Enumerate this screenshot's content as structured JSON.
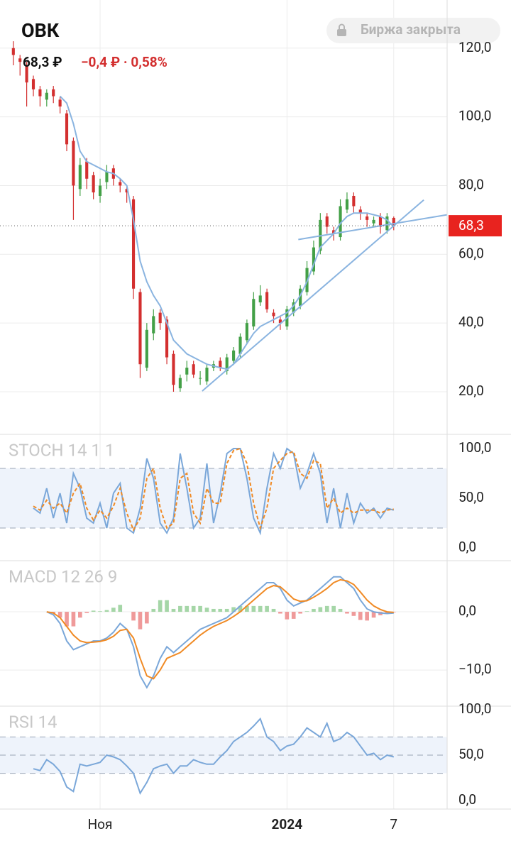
{
  "header": {
    "ticker": "ОВК",
    "price": "68,3 ₽",
    "change": "−0,4 ₽ · 0,58%",
    "status": "Биржа закрыта"
  },
  "chart_data": [
    {
      "type": "candlestick",
      "xlim": [
        -2,
        65
      ],
      "xticks": [
        {
          "value": 13,
          "label": "Ноя"
        },
        {
          "value": 41,
          "label": "2024"
        },
        {
          "value": 57,
          "label": "7"
        }
      ],
      "ylim": [
        7.6,
        134
      ],
      "yticks": [
        {
          "value": 20,
          "label": "20,0"
        },
        {
          "value": 40,
          "label": "40,0"
        },
        {
          "value": 60,
          "label": "60,0"
        },
        {
          "value": 80,
          "label": "80,0"
        },
        {
          "value": 100,
          "label": "100,0"
        },
        {
          "value": 120,
          "label": "120,0"
        }
      ],
      "grid": true,
      "up_color": "#43a047",
      "down_color": "#d32f2f",
      "open": [
        120,
        117,
        115,
        111,
        108,
        105,
        108,
        105,
        101,
        93,
        79,
        87,
        83,
        77,
        81,
        85,
        81,
        79,
        76,
        49,
        27,
        37,
        43,
        41,
        31,
        21,
        25,
        28,
        24,
        23,
        27,
        29,
        26,
        29,
        31,
        35,
        39,
        46,
        49,
        43,
        41,
        39,
        43,
        45,
        49,
        55,
        61,
        71,
        67,
        65,
        73,
        77,
        73,
        71,
        69,
        71,
        67,
        70.6
      ],
      "high": [
        122,
        118,
        116,
        112,
        109,
        108,
        109,
        106,
        102,
        94,
        88,
        88,
        84,
        82,
        86,
        86,
        82,
        80,
        77,
        50,
        40,
        44,
        44,
        42,
        32,
        25,
        29,
        29,
        26,
        28,
        29,
        30,
        31,
        33,
        37,
        41,
        49,
        51,
        50,
        44,
        42,
        45,
        47,
        51,
        58,
        64,
        72,
        72,
        68,
        76,
        78,
        78,
        74,
        72,
        71,
        72,
        72,
        71
      ],
      "low": [
        115,
        112,
        103,
        106,
        103,
        103,
        104,
        101,
        90,
        70,
        77,
        79,
        76,
        75,
        79,
        80,
        78,
        75,
        47,
        24,
        26,
        35,
        38,
        28,
        20,
        20,
        23,
        24,
        22,
        22,
        26,
        26,
        25,
        28,
        30,
        34,
        38,
        45,
        43,
        40,
        38,
        38,
        42,
        44,
        48,
        54,
        60,
        66,
        64,
        64,
        72,
        72,
        70,
        68,
        68,
        66,
        66,
        67
      ],
      "close": [
        118,
        116,
        110,
        108,
        106,
        107,
        106,
        103,
        92,
        80,
        86,
        82,
        78,
        80,
        84,
        82,
        80,
        78,
        50,
        28,
        38,
        42,
        40,
        30,
        22,
        24,
        27,
        25,
        24,
        27,
        28,
        27,
        30,
        32,
        36,
        40,
        47,
        48,
        44,
        42,
        40,
        44,
        46,
        50,
        56,
        62,
        70,
        68,
        66,
        74,
        76,
        74,
        72,
        70,
        70,
        68,
        71,
        68.3
      ],
      "series": [
        {
          "color": "#8ab4e0",
          "values": [
            null,
            null,
            null,
            null,
            null,
            null,
            null,
            106,
            104,
            98,
            90,
            87,
            86,
            85,
            84,
            83.5,
            82,
            80,
            70,
            58,
            52,
            48,
            45,
            40,
            35,
            33,
            31,
            30,
            29,
            28,
            27.5,
            27,
            26.6,
            28,
            31,
            34,
            37,
            39,
            40,
            41,
            42,
            43,
            45,
            48,
            52,
            57,
            62,
            64,
            66,
            69,
            71,
            72,
            72,
            72,
            71.5,
            71,
            70,
            68
          ]
        }
      ],
      "trendlines": [
        {
          "color": "#8ab4e0",
          "x": [
            28.3,
            61.5
          ],
          "y": [
            20.2,
            75.8
          ]
        },
        {
          "color": "#8ab4e0",
          "x": [
            42.7,
            65
          ],
          "y": [
            64.3,
            71.5
          ]
        }
      ],
      "last_price": {
        "value": 68.3,
        "label": "68,3",
        "color": "#e8231f"
      }
    },
    {
      "type": "line",
      "title": "STOCH 14 1 1",
      "ylim": [
        -12.9,
        114.3
      ],
      "yticks": [
        {
          "value": 0,
          "label": "0,0"
        },
        {
          "value": 50,
          "label": "50,0"
        },
        {
          "value": 100,
          "label": "100,0"
        }
      ],
      "bands": [
        20,
        80
      ],
      "series": [
        {
          "color": "#7aa7d9",
          "values": [
            null,
            null,
            null,
            40,
            35,
            60,
            30,
            55,
            25,
            75,
            60,
            30,
            25,
            45,
            20,
            55,
            65,
            20,
            15,
            40,
            90,
            70,
            25,
            15,
            30,
            95,
            60,
            20,
            30,
            85,
            25,
            55,
            95,
            100,
            100,
            70,
            30,
            15,
            60,
            95,
            80,
            100,
            95,
            60,
            75,
            95,
            75,
            25,
            60,
            20,
            55,
            25,
            45,
            35,
            40,
            30,
            40,
            38
          ]
        },
        {
          "color": "#f08a24",
          "dashed": true,
          "values": [
            null,
            null,
            null,
            42,
            38,
            48,
            40,
            45,
            35,
            55,
            65,
            40,
            28,
            38,
            30,
            42,
            60,
            35,
            18,
            30,
            70,
            80,
            40,
            20,
            25,
            70,
            75,
            35,
            25,
            60,
            45,
            45,
            85,
            98,
            100,
            85,
            45,
            20,
            40,
            80,
            88,
            95,
            97,
            75,
            70,
            88,
            85,
            40,
            50,
            35,
            40,
            35,
            38,
            38,
            38,
            35,
            38,
            39
          ]
        }
      ]
    },
    {
      "type": "line",
      "title": "MACD 12 26 9",
      "ylim": [
        -16.2,
        8.78
      ],
      "yticks": [
        {
          "value": 0,
          "label": "0,0"
        },
        {
          "value": -10,
          "label": "−10,0"
        }
      ],
      "grid": true,
      "series": [
        {
          "type": "bar",
          "up_color": "#a5d6a7",
          "down_color": "#ef9a9a",
          "values": [
            null,
            null,
            null,
            null,
            null,
            0,
            -0.3,
            -1,
            -2.5,
            -2.5,
            -1,
            -0.2,
            0.2,
            0.1,
            0.3,
            0.7,
            1.2,
            0,
            -1.5,
            -3,
            -2,
            0.5,
            2,
            2,
            0.5,
            1,
            1,
            1,
            1,
            0.7,
            0.5,
            0.5,
            0.5,
            0.8,
            1,
            1,
            1,
            1,
            1,
            0.5,
            -0.3,
            -1.3,
            -1.2,
            -0.3,
            0.1,
            0.5,
            0.8,
            1,
            1,
            0.5,
            -0.3,
            -0.7,
            -1.4,
            -1.5,
            -1,
            -0.6,
            -0.3,
            -0.1
          ]
        },
        {
          "color": "#7aa7d9",
          "values": [
            null,
            null,
            null,
            null,
            null,
            0,
            -0.5,
            -2,
            -5,
            -6.5,
            -6,
            -5.5,
            -5,
            -5,
            -4.5,
            -3.5,
            -2,
            -3,
            -6,
            -11,
            -13,
            -11,
            -8,
            -6,
            -7,
            -6,
            -5,
            -4,
            -3,
            -2.5,
            -2,
            -1.5,
            -1,
            0,
            1,
            2,
            3,
            4,
            5,
            5,
            4,
            2,
            1,
            1.5,
            2,
            3,
            4,
            5,
            6,
            6,
            5,
            4,
            2,
            0.5,
            0,
            -0.2,
            -0.3,
            -0.2
          ]
        },
        {
          "color": "#f08a24",
          "values": [
            null,
            null,
            null,
            null,
            null,
            0,
            -0.2,
            -1,
            -2.5,
            -4,
            -5,
            -5.3,
            -5.2,
            -5.1,
            -4.8,
            -4.2,
            -3.2,
            -3,
            -4.5,
            -8,
            -11,
            -11.5,
            -10,
            -8,
            -7.5,
            -7,
            -6,
            -5,
            -4,
            -3.2,
            -2.5,
            -2,
            -1.5,
            -0.8,
            0,
            1,
            2,
            3,
            4,
            4.5,
            4.3,
            3.3,
            2.2,
            1.8,
            1.9,
            2.5,
            3.2,
            4,
            5,
            5.5,
            5.3,
            4.7,
            3.4,
            2,
            1,
            0.4,
            0,
            -0.1
          ]
        }
      ]
    },
    {
      "type": "line",
      "title": "RSI 14",
      "ylim": [
        -9.4,
        103.9
      ],
      "yticks": [
        {
          "value": 0,
          "label": "0,0"
        },
        {
          "value": 50,
          "label": "50,0"
        },
        {
          "value": 100,
          "label": "100,0"
        }
      ],
      "bands": [
        30,
        50,
        70
      ],
      "series": [
        {
          "color": "#7aa7d9",
          "values": [
            null,
            null,
            null,
            35,
            33,
            45,
            40,
            32,
            15,
            10,
            40,
            38,
            40,
            42,
            50,
            48,
            45,
            38,
            30,
            8,
            20,
            35,
            38,
            40,
            30,
            38,
            38,
            45,
            42,
            40,
            40,
            48,
            55,
            65,
            70,
            75,
            82,
            90,
            70,
            65,
            55,
            60,
            62,
            70,
            80,
            75,
            70,
            85,
            65,
            68,
            75,
            70,
            60,
            50,
            52,
            45,
            50,
            48
          ]
        }
      ]
    }
  ]
}
